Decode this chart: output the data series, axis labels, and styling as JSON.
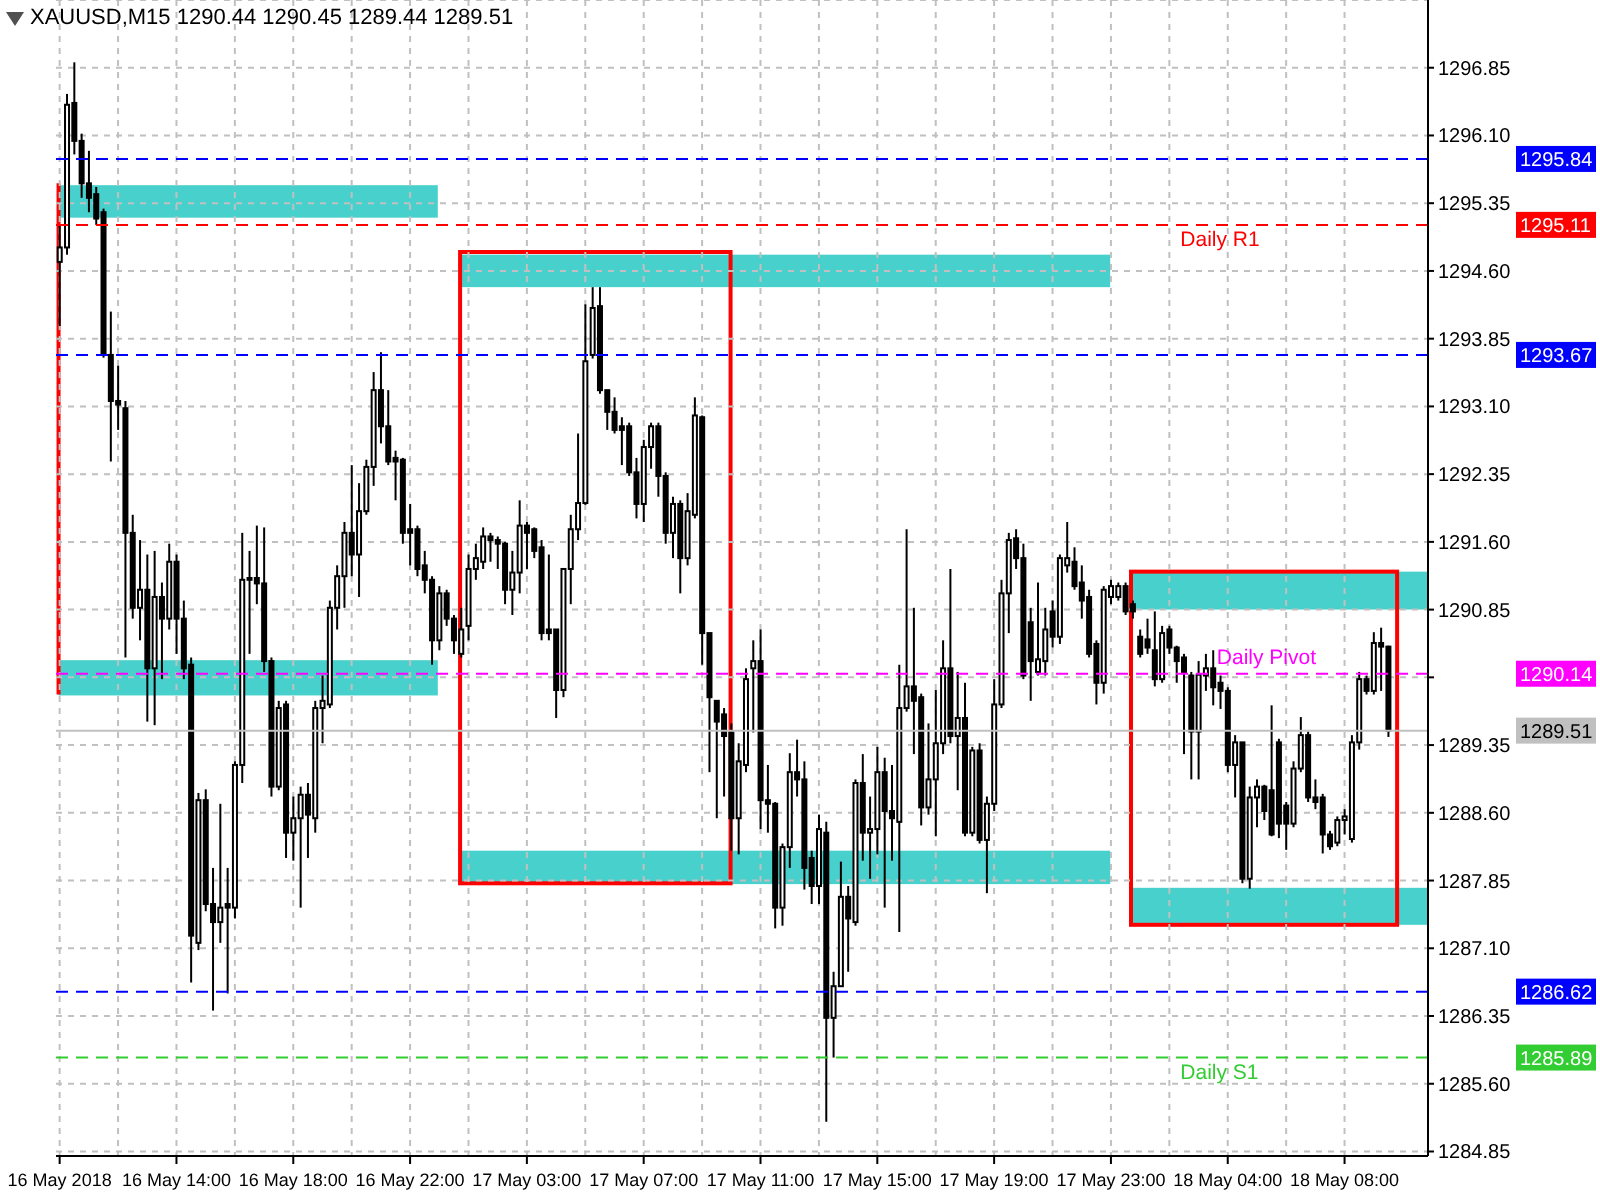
{
  "chart_data": {
    "type": "candlestick",
    "title": "XAUUSD,M15 1290.44 1290.45 1289.44 1289.51",
    "categories": [
      "16 May 2018",
      null,
      null,
      null,
      null,
      null,
      null,
      null,
      null,
      null,
      null,
      null,
      null,
      null,
      null,
      null,
      "16 May 14:00",
      null,
      null,
      null,
      null,
      null,
      null,
      null,
      null,
      null,
      null,
      null,
      null,
      null,
      null,
      null,
      "16 May 18:00",
      null,
      null,
      null,
      null,
      null,
      null,
      null,
      null,
      null,
      null,
      null,
      null,
      null,
      null,
      null,
      "16 May 22:00",
      null,
      null,
      null,
      null,
      null,
      null,
      null,
      null,
      null,
      null,
      null,
      null,
      null,
      null,
      null,
      "17 May 03:00",
      null,
      null,
      null,
      null,
      null,
      null,
      null,
      null,
      null,
      null,
      null,
      null,
      null,
      null,
      null,
      "17 May 07:00",
      null,
      null,
      null,
      null,
      null,
      null,
      null,
      null,
      null,
      null,
      null,
      null,
      null,
      null,
      null,
      "17 May 11:00",
      null,
      null,
      null,
      null,
      null,
      null,
      null,
      null,
      null,
      null,
      null,
      null,
      null,
      null,
      null,
      "17 May 15:00",
      null,
      null,
      null,
      null,
      null,
      null,
      null,
      null,
      null,
      null,
      null,
      null,
      null,
      null,
      null,
      "17 May 19:00",
      null,
      null,
      null,
      null,
      null,
      null,
      null,
      null,
      null,
      null,
      null,
      null,
      null,
      null,
      null,
      "17 May 23:00",
      null,
      null,
      null,
      null,
      null,
      null,
      null,
      null,
      null,
      null,
      null,
      null,
      null,
      null,
      null,
      "18 May 04:00",
      null,
      null,
      null,
      null,
      null,
      null,
      null,
      null,
      null,
      null,
      null,
      null,
      null,
      null,
      null,
      "18 May 08:00",
      null,
      null,
      null,
      null,
      null,
      null
    ],
    "ohlc": [
      [
        1294.7,
        1295.1,
        1293.99,
        1294.86
      ],
      [
        1294.86,
        1296.56,
        1294.78,
        1296.44
      ],
      [
        1296.46,
        1296.91,
        1295.89,
        1296.04
      ],
      [
        1296.04,
        1296.12,
        1295.41,
        1295.57
      ],
      [
        1295.57,
        1295.93,
        1295.25,
        1295.41
      ],
      [
        1295.45,
        1295.53,
        1295.11,
        1295.18
      ],
      [
        1295.25,
        1295.29,
        1293.64,
        1293.67
      ],
      [
        1293.67,
        1294.15,
        1292.49,
        1293.16
      ],
      [
        1293.16,
        1293.55,
        1292.84,
        1293.12
      ],
      [
        1293.08,
        1293.16,
        1290.32,
        1291.7
      ],
      [
        1291.7,
        1291.9,
        1290.75,
        1290.87
      ],
      [
        1290.87,
        1291.62,
        1290.51,
        1291.07
      ],
      [
        1291.07,
        1291.46,
        1289.61,
        1290.2
      ],
      [
        1290.2,
        1291.5,
        1289.57,
        1290.99
      ],
      [
        1290.99,
        1291.15,
        1290.08,
        1290.75
      ],
      [
        1290.75,
        1291.58,
        1290.63,
        1291.38
      ],
      [
        1291.38,
        1291.46,
        1290.36,
        1290.75
      ],
      [
        1290.75,
        1290.95,
        1290.08,
        1290.2
      ],
      [
        1290.24,
        1290.32,
        1286.72,
        1287.24
      ],
      [
        1287.16,
        1288.82,
        1287.08,
        1288.74
      ],
      [
        1288.74,
        1288.86,
        1287.51,
        1287.59
      ],
      [
        1287.59,
        1287.99,
        1286.41,
        1287.39
      ],
      [
        1287.39,
        1288.7,
        1287.16,
        1287.55
      ],
      [
        1287.59,
        1287.99,
        1286.6,
        1287.55
      ],
      [
        1287.55,
        1289.17,
        1287.43,
        1289.13
      ],
      [
        1289.13,
        1291.7,
        1288.93,
        1291.18
      ],
      [
        1291.18,
        1291.5,
        1290.36,
        1291.2
      ],
      [
        1291.2,
        1291.78,
        1290.91,
        1291.14
      ],
      [
        1291.14,
        1291.76,
        1290.16,
        1290.28
      ],
      [
        1290.28,
        1290.32,
        1288.78,
        1288.89
      ],
      [
        1288.89,
        1289.84,
        1288.85,
        1289.76
      ],
      [
        1289.8,
        1289.84,
        1288.1,
        1288.38
      ],
      [
        1288.38,
        1288.78,
        1288.07,
        1288.54
      ],
      [
        1288.54,
        1288.89,
        1287.55,
        1288.8
      ],
      [
        1288.8,
        1288.93,
        1288.1,
        1288.58
      ],
      [
        1288.54,
        1289.84,
        1288.38,
        1289.76
      ],
      [
        1289.76,
        1290.12,
        1289.37,
        1289.84
      ],
      [
        1289.8,
        1290.95,
        1289.76,
        1290.87
      ],
      [
        1290.87,
        1291.34,
        1290.63,
        1291.22
      ],
      [
        1291.22,
        1291.82,
        1290.87,
        1291.7
      ],
      [
        1291.7,
        1292.45,
        1291.22,
        1291.46
      ],
      [
        1291.46,
        1292.25,
        1290.99,
        1291.94
      ],
      [
        1291.94,
        1292.51,
        1291.9,
        1292.43
      ],
      [
        1292.43,
        1293.48,
        1292.22,
        1293.28
      ],
      [
        1293.28,
        1293.7,
        1292.69,
        1292.88
      ],
      [
        1292.88,
        1293.28,
        1292.45,
        1292.49
      ],
      [
        1292.53,
        1292.61,
        1292.06,
        1292.49
      ],
      [
        1292.51,
        1292.53,
        1291.58,
        1291.7
      ],
      [
        1291.74,
        1292.02,
        1291.34,
        1291.7
      ],
      [
        1291.74,
        1291.78,
        1291.22,
        1291.3
      ],
      [
        1291.34,
        1291.5,
        1291.03,
        1291.18
      ],
      [
        1291.18,
        1291.22,
        1290.24,
        1290.51
      ],
      [
        1290.51,
        1291.11,
        1290.4,
        1291.03
      ],
      [
        1291.03,
        1291.07,
        1290.67,
        1290.75
      ],
      [
        1290.75,
        1290.79,
        1290.36,
        1290.51
      ],
      [
        1290.36,
        1290.87,
        1290.32,
        1290.63
      ],
      [
        1290.67,
        1291.46,
        1290.51,
        1291.3
      ],
      [
        1291.3,
        1291.58,
        1291.18,
        1291.42
      ],
      [
        1291.38,
        1291.76,
        1291.3,
        1291.66
      ],
      [
        1291.66,
        1291.7,
        1291.38,
        1291.62
      ],
      [
        1291.62,
        1291.66,
        1291.3,
        1291.58
      ],
      [
        1291.58,
        1291.6,
        1290.91,
        1291.07
      ],
      [
        1291.07,
        1291.5,
        1290.79,
        1291.26
      ],
      [
        1291.26,
        1292.06,
        1291.03,
        1291.78
      ],
      [
        1291.78,
        1291.82,
        1291.3,
        1291.7
      ],
      [
        1291.74,
        1291.76,
        1291.42,
        1291.5
      ],
      [
        1291.54,
        1291.62,
        1290.51,
        1290.59
      ],
      [
        1290.63,
        1291.46,
        1290.51,
        1290.59
      ],
      [
        1290.63,
        1290.63,
        1289.65,
        1289.96
      ],
      [
        1289.96,
        1291.3,
        1289.88,
        1291.3
      ],
      [
        1291.3,
        1291.9,
        1290.91,
        1291.74
      ],
      [
        1291.74,
        1292.8,
        1291.62,
        1292.03
      ],
      [
        1292.03,
        1294.23,
        1292.01,
        1293.6
      ],
      [
        1293.67,
        1294.42,
        1293.63,
        1294.19
      ],
      [
        1294.21,
        1294.42,
        1293.24,
        1293.28
      ],
      [
        1293.28,
        1293.28,
        1292.84,
        1293.04
      ],
      [
        1293.04,
        1293.2,
        1292.8,
        1292.84
      ],
      [
        1292.88,
        1292.98,
        1292.45,
        1292.84
      ],
      [
        1292.88,
        1292.92,
        1292.33,
        1292.37
      ],
      [
        1292.37,
        1292.53,
        1291.86,
        1292.02
      ],
      [
        1292.02,
        1292.73,
        1291.82,
        1292.65
      ],
      [
        1292.65,
        1292.92,
        1292.41,
        1292.88
      ],
      [
        1292.88,
        1292.92,
        1292.1,
        1292.33
      ],
      [
        1292.33,
        1292.37,
        1291.58,
        1291.7
      ],
      [
        1291.7,
        1292.1,
        1291.42,
        1292.02
      ],
      [
        1292.02,
        1292.06,
        1291.03,
        1291.42
      ],
      [
        1291.42,
        1292.14,
        1291.34,
        1291.94
      ],
      [
        1291.9,
        1293.2,
        1291.86,
        1293.0
      ],
      [
        1292.98,
        1293.0,
        1290.24,
        1290.59
      ],
      [
        1290.59,
        1290.59,
        1289.05,
        1289.88
      ],
      [
        1289.84,
        1289.84,
        1288.54,
        1289.61
      ],
      [
        1289.69,
        1289.76,
        1288.78,
        1289.45
      ],
      [
        1289.49,
        1289.59,
        1288.18,
        1288.54
      ],
      [
        1288.54,
        1289.37,
        1288.14,
        1289.17
      ],
      [
        1289.13,
        1290.2,
        1289.05,
        1290.08
      ],
      [
        1290.2,
        1290.51,
        1289.49,
        1290.28
      ],
      [
        1290.28,
        1290.63,
        1288.42,
        1288.74
      ],
      [
        1288.74,
        1289.13,
        1288.38,
        1288.7
      ],
      [
        1288.7,
        1288.72,
        1287.32,
        1287.55
      ],
      [
        1287.55,
        1288.26,
        1287.35,
        1288.22
      ],
      [
        1288.22,
        1289.26,
        1287.99,
        1289.05
      ],
      [
        1289.05,
        1289.41,
        1288.78,
        1288.97
      ],
      [
        1288.97,
        1289.17,
        1287.75,
        1287.99
      ],
      [
        1288.1,
        1288.18,
        1287.59,
        1287.79
      ],
      [
        1287.79,
        1288.58,
        1287.59,
        1288.42
      ],
      [
        1288.38,
        1288.5,
        1285.18,
        1286.33
      ],
      [
        1286.33,
        1286.84,
        1285.89,
        1286.68
      ],
      [
        1286.68,
        1288.06,
        1286.68,
        1287.67
      ],
      [
        1287.67,
        1287.79,
        1286.84,
        1287.43
      ],
      [
        1287.39,
        1288.97,
        1287.35,
        1288.93
      ],
      [
        1288.93,
        1289.25,
        1288.07,
        1288.38
      ],
      [
        1288.38,
        1288.78,
        1287.87,
        1288.42
      ],
      [
        1288.42,
        1289.33,
        1288.14,
        1289.05
      ],
      [
        1289.05,
        1289.21,
        1287.55,
        1288.62
      ],
      [
        1288.62,
        1289.13,
        1288.07,
        1288.54
      ],
      [
        1288.5,
        1290.24,
        1287.28,
        1289.76
      ],
      [
        1289.76,
        1291.74,
        1289.72,
        1290.0
      ],
      [
        1290.0,
        1290.87,
        1289.25,
        1289.84
      ],
      [
        1289.88,
        1289.92,
        1288.46,
        1288.66
      ],
      [
        1288.66,
        1289.59,
        1288.58,
        1288.97
      ],
      [
        1288.97,
        1289.96,
        1288.34,
        1289.37
      ],
      [
        1289.37,
        1290.51,
        1289.25,
        1290.2
      ],
      [
        1290.2,
        1291.3,
        1289.37,
        1289.45
      ],
      [
        1289.45,
        1290.16,
        1288.85,
        1289.65
      ],
      [
        1289.65,
        1290.04,
        1288.34,
        1288.38
      ],
      [
        1288.38,
        1289.33,
        1288.34,
        1289.29
      ],
      [
        1289.29,
        1289.37,
        1288.26,
        1288.3
      ],
      [
        1288.3,
        1288.78,
        1287.71,
        1288.7
      ],
      [
        1288.7,
        1290.08,
        1288.62,
        1289.8
      ],
      [
        1289.8,
        1291.18,
        1289.76,
        1291.03
      ],
      [
        1291.03,
        1291.7,
        1290.59,
        1291.62
      ],
      [
        1291.64,
        1291.74,
        1291.3,
        1291.42
      ],
      [
        1291.42,
        1291.58,
        1290.08,
        1290.12
      ],
      [
        1290.71,
        1290.87,
        1289.84,
        1290.28
      ],
      [
        1290.16,
        1291.15,
        1290.12,
        1290.3
      ],
      [
        1290.28,
        1290.87,
        1290.12,
        1290.63
      ],
      [
        1290.83,
        1290.95,
        1290.43,
        1290.55
      ],
      [
        1290.55,
        1291.46,
        1290.47,
        1291.42
      ],
      [
        1291.34,
        1291.82,
        1291.26,
        1291.42
      ],
      [
        1291.38,
        1291.54,
        1291.07,
        1291.11
      ],
      [
        1291.15,
        1291.34,
        1290.75,
        1290.95
      ],
      [
        1290.99,
        1291.07,
        1290.32,
        1290.36
      ],
      [
        1290.47,
        1290.51,
        1289.8,
        1290.04
      ],
      [
        1290.04,
        1291.11,
        1289.92,
        1291.07
      ],
      [
        1290.99,
        1291.18,
        1290.91,
        1291.11
      ],
      [
        1290.99,
        1291.15,
        1290.95,
        1291.11
      ],
      [
        1291.11,
        1291.15,
        1290.79,
        1290.83
      ],
      [
        1290.91,
        1290.95,
        1290.75,
        1290.83
      ],
      [
        1290.55,
        1290.63,
        1290.32,
        1290.36
      ],
      [
        1290.52,
        1290.75,
        1290.36,
        1290.43
      ],
      [
        1290.4,
        1290.83,
        1290.0,
        1290.08
      ],
      [
        1290.08,
        1290.67,
        1290.04,
        1290.59
      ],
      [
        1290.63,
        1290.67,
        1290.36,
        1290.43
      ],
      [
        1290.43,
        1290.45,
        1290.04,
        1290.28
      ],
      [
        1290.32,
        1290.36,
        1289.25,
        1290.16
      ],
      [
        1290.12,
        1290.16,
        1288.97,
        1289.5
      ],
      [
        1289.5,
        1290.28,
        1288.97,
        1290.13
      ],
      [
        1290.12,
        1290.36,
        1289.95,
        1290.2
      ],
      [
        1290.2,
        1290.4,
        1289.79,
        1289.99
      ],
      [
        1290.04,
        1290.12,
        1289.75,
        1289.95
      ],
      [
        1289.95,
        1289.99,
        1289.05,
        1289.13
      ],
      [
        1289.13,
        1289.46,
        1288.77,
        1289.38
      ],
      [
        1289.38,
        1289.38,
        1287.82,
        1287.87
      ],
      [
        1287.87,
        1288.89,
        1287.76,
        1288.77
      ],
      [
        1288.77,
        1288.97,
        1288.44,
        1288.89
      ],
      [
        1288.89,
        1288.91,
        1288.52,
        1288.62
      ],
      [
        1288.85,
        1289.79,
        1288.34,
        1288.36
      ],
      [
        1289.38,
        1289.42,
        1288.32,
        1288.48
      ],
      [
        1288.68,
        1288.72,
        1288.19,
        1288.48
      ],
      [
        1288.48,
        1289.17,
        1288.44,
        1289.09
      ],
      [
        1289.09,
        1289.66,
        1289.05,
        1289.46
      ],
      [
        1289.46,
        1289.5,
        1288.72,
        1288.77
      ],
      [
        1288.77,
        1288.97,
        1288.64,
        1288.72
      ],
      [
        1288.77,
        1288.81,
        1288.15,
        1288.36
      ],
      [
        1288.36,
        1288.4,
        1288.19,
        1288.23
      ],
      [
        1288.27,
        1288.56,
        1288.23,
        1288.52
      ],
      [
        1288.52,
        1288.64,
        1288.36,
        1288.56
      ],
      [
        1288.31,
        1289.46,
        1288.27,
        1289.38
      ],
      [
        1289.38,
        1290.16,
        1289.3,
        1290.08
      ],
      [
        1290.08,
        1290.12,
        1289.91,
        1289.95
      ],
      [
        1289.95,
        1290.6,
        1289.91,
        1290.48
      ],
      [
        1290.48,
        1290.65,
        1289.95,
        1290.44
      ],
      [
        1290.44,
        1290.45,
        1289.44,
        1289.51
      ]
    ],
    "ylim": [
      1284.8,
      1297.6
    ],
    "yticks": [
      1284.85,
      {
        "value": 1285.6,
        "label": "1285.60"
      },
      1286.35,
      {
        "value": 1287.1,
        "label": "1287.10"
      },
      1287.85,
      {
        "value": 1288.6,
        "label": "1288.60"
      },
      1289.35,
      {
        "value": 1290.1,
        "label": null
      },
      1290.85,
      {
        "value": 1291.6,
        "label": "1291.60"
      },
      1292.35,
      {
        "value": 1293.1,
        "label": "1293.10"
      },
      1293.85,
      {
        "value": 1294.6,
        "label": "1294.60"
      },
      1295.35,
      {
        "value": 1296.1,
        "label": "1296.10"
      },
      1296.85
    ],
    "grid": true,
    "ref_lines": [
      {
        "axis": "y",
        "value": 1295.84,
        "color": "#0000ff",
        "line_style": "dashed"
      },
      {
        "axis": "y",
        "value": 1295.11,
        "label": "Daily R1",
        "color": "#ff0000",
        "line_style": "dashed"
      },
      {
        "axis": "y",
        "value": 1293.67,
        "color": "#0000ff",
        "line_style": "dashed"
      },
      {
        "axis": "y",
        "value": 1290.14,
        "label": "Daily Pivot",
        "color": "#ff00ff",
        "line_style": "dashed"
      },
      {
        "axis": "y",
        "value": 1289.51,
        "color": "#c0c0c0",
        "line_style": "solid"
      },
      {
        "axis": "y",
        "value": 1286.62,
        "color": "#0000ff",
        "line_style": "dashed"
      },
      {
        "axis": "y",
        "value": 1285.89,
        "label": "Daily S1",
        "color": "#32cd32",
        "line_style": "dashed"
      }
    ],
    "annotations": [
      "1295.84",
      "1295.11",
      "1293.67",
      "1290.14",
      "1289.51",
      "1286.62",
      "1285.89"
    ]
  }
}
